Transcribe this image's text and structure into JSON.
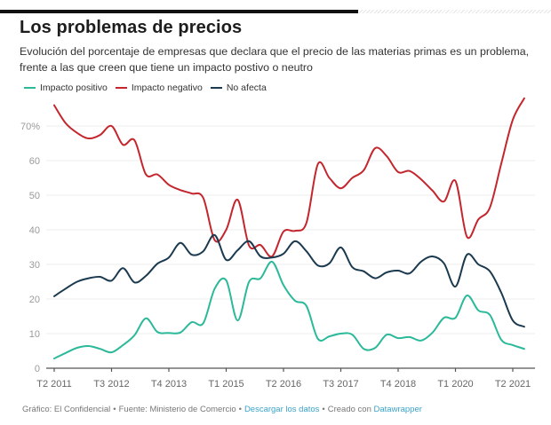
{
  "header": {
    "title": "Los problemas de precios",
    "subtitle": "Evolución del porcentaje de empresas que declara que el precio de las materias primas es un problema, frente a las que creen que tiene un impacto postivo o neutro"
  },
  "footer": {
    "credit": "Gráfico: El Confidencial",
    "source": "Fuente: Ministerio de Comercio",
    "download_link": "Descargar los datos",
    "created_with": "Creado con",
    "tool_link": "Datawrapper",
    "separator": "•"
  },
  "colors": {
    "positive": "#2bb99a",
    "negative": "#c4262e",
    "neutral": "#1b3a4f",
    "link": "#3aa3c9"
  },
  "chart_data": {
    "type": "line",
    "title": "Los problemas de precios",
    "xlabel": "",
    "ylabel": "",
    "ylim": [
      0,
      80
    ],
    "y_ticks": [
      0,
      10,
      20,
      30,
      40,
      50,
      60,
      70
    ],
    "y_tick_labels": [
      "0",
      "10",
      "20",
      "30",
      "40",
      "50",
      "60",
      "70%"
    ],
    "grid": true,
    "legend_position": "top-left",
    "x_tick_labels": [
      "T2 2011",
      "T3 2012",
      "T4 2013",
      "T1 2015",
      "T2 2016",
      "T3 2017",
      "T4 2018",
      "T1 2020",
      "T2 2021"
    ],
    "x_tick_every": 5,
    "x": [
      "T2 2011",
      "T3 2011",
      "T4 2011",
      "T1 2012",
      "T2 2012",
      "T3 2012",
      "T4 2012",
      "T1 2013",
      "T2 2013",
      "T3 2013",
      "T4 2013",
      "T1 2014",
      "T2 2014",
      "T3 2014",
      "T4 2014",
      "T1 2015",
      "T2 2015",
      "T3 2015",
      "T4 2015",
      "T1 2016",
      "T2 2016",
      "T3 2016",
      "T4 2016",
      "T1 2017",
      "T2 2017",
      "T3 2017",
      "T4 2017",
      "T1 2018",
      "T2 2018",
      "T3 2018",
      "T4 2018",
      "T1 2019",
      "T2 2019",
      "T3 2019",
      "T4 2019",
      "T1 2020",
      "T2 2020",
      "T3 2020",
      "T4 2020",
      "T1 2021",
      "T2 2021",
      "T3 2021"
    ],
    "series": [
      {
        "name": "Impacto positivo",
        "color": "#2bb99a",
        "values": [
          2.8,
          4.4,
          5.9,
          6.4,
          5.6,
          4.6,
          6.7,
          9.5,
          14.4,
          10.5,
          10.2,
          10.3,
          13.3,
          13.0,
          23.0,
          25.4,
          13.8,
          25.0,
          26.0,
          30.8,
          24.0,
          19.5,
          18.0,
          8.5,
          9.2,
          10.0,
          9.7,
          5.6,
          5.9,
          9.7,
          8.7,
          9.0,
          8.0,
          10.3,
          14.6,
          14.6,
          21.0,
          16.7,
          15.4,
          8.2,
          6.7,
          5.6
        ]
      },
      {
        "name": "Impacto negativo",
        "color": "#c4262e",
        "values": [
          76.0,
          70.8,
          68.0,
          66.4,
          67.4,
          70.0,
          64.6,
          65.9,
          56.0,
          56.0,
          53.0,
          51.5,
          50.5,
          49.2,
          37.0,
          40.0,
          48.7,
          35.4,
          35.6,
          32.3,
          39.5,
          39.7,
          42.0,
          59.0,
          55.0,
          52.0,
          55.0,
          57.2,
          63.6,
          61.3,
          56.7,
          57.0,
          54.6,
          51.3,
          48.2,
          54.1,
          38.0,
          43.0,
          46.4,
          59.2,
          71.8,
          78.0
        ]
      },
      {
        "name": "No afecta",
        "color": "#1b3a4f",
        "values": [
          20.8,
          23.0,
          25.0,
          26.0,
          26.4,
          25.3,
          28.9,
          24.8,
          26.7,
          30.2,
          32.0,
          36.2,
          32.8,
          33.8,
          38.5,
          31.3,
          34.1,
          36.7,
          32.3,
          32.0,
          33.1,
          36.7,
          33.8,
          29.7,
          30.3,
          34.9,
          29.2,
          28.0,
          26.0,
          27.7,
          28.2,
          27.4,
          30.8,
          32.3,
          30.3,
          23.6,
          32.8,
          30.0,
          28.0,
          21.8,
          13.8,
          12.0
        ]
      }
    ]
  }
}
